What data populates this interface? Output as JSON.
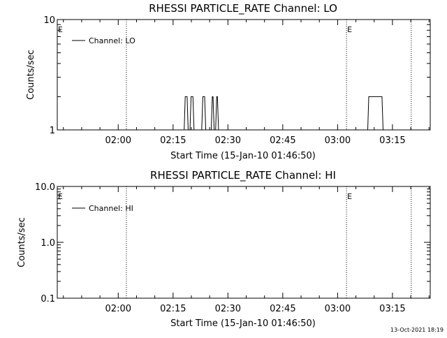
{
  "chart_data": [
    {
      "type": "line",
      "title": "RHESSI PARTICLE_RATE Channel: LO",
      "xlabel": "Start Time (15-Jan-10 01:46:50)",
      "ylabel": "Counts/sec",
      "yscale": "log",
      "ylim": [
        1,
        10
      ],
      "ytick_values": [
        1,
        10
      ],
      "ytick_labels": [
        "1",
        "10"
      ],
      "xlim_minutes": [
        -3.5,
        98.5
      ],
      "xtick_minutes": [
        13.17,
        28.17,
        43.17,
        58.17,
        73.17,
        88.17
      ],
      "xtick_labels": [
        "02:00",
        "02:15",
        "02:30",
        "02:45",
        "03:00",
        "03:15"
      ],
      "event_lines_minutes": [
        15.4,
        75.6,
        93.3
      ],
      "event_markers": [
        {
          "minute": -3.5,
          "label": "E"
        },
        {
          "minute": 75.6,
          "label": "E"
        }
      ],
      "legend": "Channel: LO",
      "series": [
        {
          "name": "Channel: LO",
          "x": [
            -3.5,
            31.2,
            31.5,
            32.0,
            32.3,
            32.8,
            33.1,
            33.6,
            33.9,
            36.0,
            36.3,
            36.8,
            37.1,
            38.6,
            38.9,
            39.1,
            39.4,
            39.8,
            40.1,
            40.3,
            40.6,
            81.4,
            81.7,
            82.2,
            82.5,
            84.7,
            85.0,
            85.3,
            85.6,
            98.5
          ],
          "y": [
            1,
            1,
            2,
            2,
            1,
            1,
            2,
            2,
            1,
            1,
            2,
            2,
            1,
            1,
            2,
            2,
            1,
            1,
            2,
            2,
            1,
            1,
            2,
            2,
            2,
            2,
            2,
            2,
            1,
            1
          ]
        }
      ]
    },
    {
      "type": "line",
      "title": "RHESSI PARTICLE_RATE Channel: HI",
      "xlabel": "Start Time (15-Jan-10 01:46:50)",
      "ylabel": "Counts/sec",
      "yscale": "log",
      "ylim": [
        0.1,
        10
      ],
      "ytick_values": [
        0.1,
        1,
        10
      ],
      "ytick_labels": [
        "0.1",
        "1.0",
        "10.0"
      ],
      "xlim_minutes": [
        -3.5,
        98.5
      ],
      "xtick_minutes": [
        13.17,
        28.17,
        43.17,
        58.17,
        73.17,
        88.17
      ],
      "xtick_labels": [
        "02:00",
        "02:15",
        "02:30",
        "02:45",
        "03:00",
        "03:15"
      ],
      "event_lines_minutes": [
        15.4,
        75.6,
        93.3
      ],
      "event_markers": [
        {
          "minute": -3.5,
          "label": "E"
        },
        {
          "minute": 75.6,
          "label": "E"
        }
      ],
      "legend": "Channel: HI",
      "series": [
        {
          "name": "Channel: HI",
          "x": [],
          "y": []
        }
      ]
    }
  ],
  "footer": {
    "timestamp": "13-Oct-2021 18:19"
  }
}
